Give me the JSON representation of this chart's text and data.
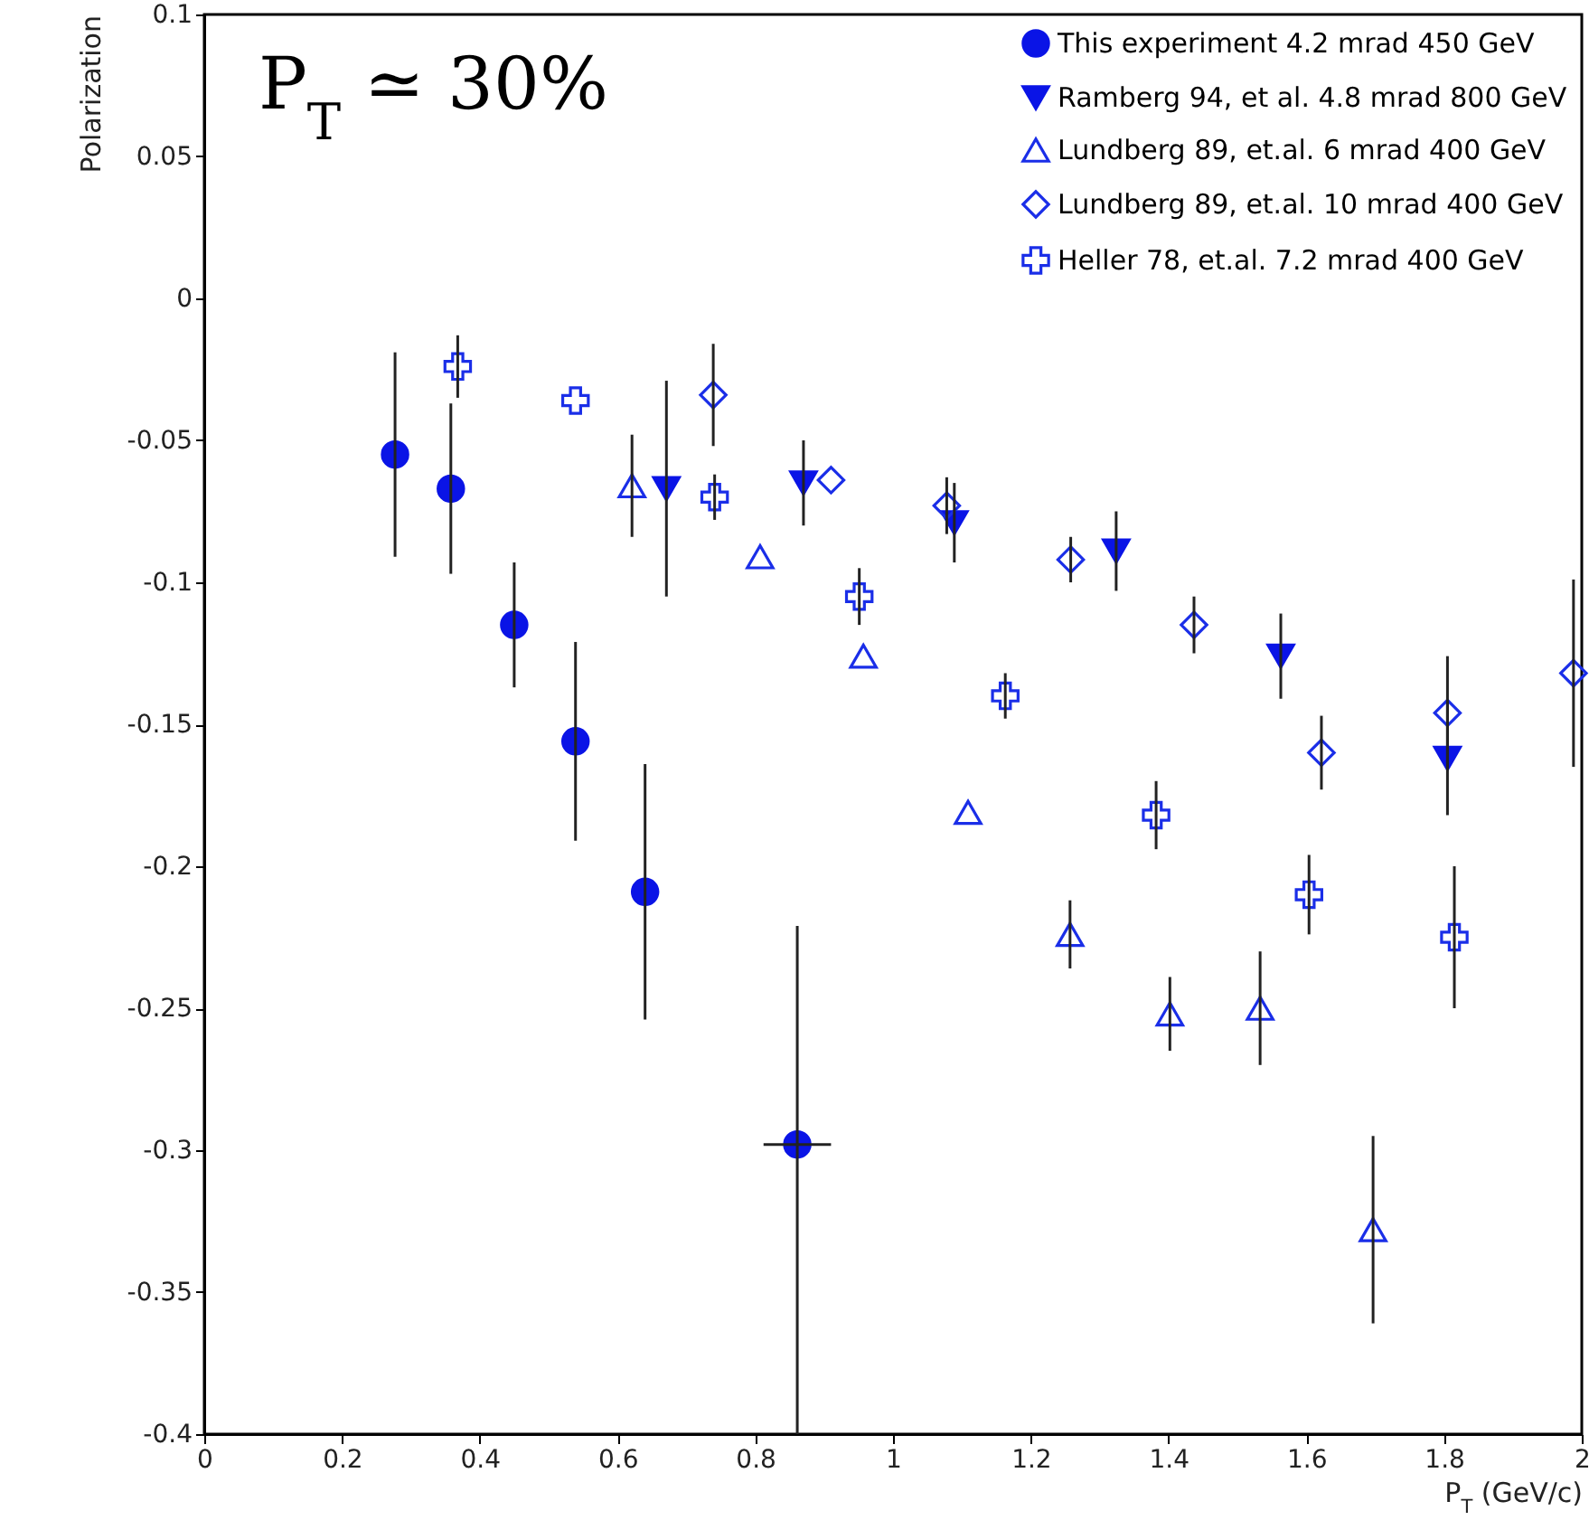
{
  "chart_data": {
    "type": "scatter",
    "xlabel": "P$_{T}$ (GeV/c)",
    "ylabel": "Polarization",
    "annotations": [
      "P$_{T}$ ≃ 30%"
    ],
    "xlim": [
      0,
      2
    ],
    "xticks": [
      0,
      0.2,
      0.4,
      0.6,
      0.8,
      1,
      1.2,
      1.4,
      1.6,
      1.8,
      2
    ],
    "ylim": [
      -0.4,
      0.1
    ],
    "yticks": [
      -0.4,
      -0.35,
      -0.3,
      -0.25,
      -0.2,
      -0.15,
      -0.1,
      -0.05,
      0,
      0.05,
      0.1
    ],
    "legend": "top right",
    "series": [
      {
        "name": "This experiment 4.2 mrad 450 GeV",
        "color": "#0a14e6",
        "marker": "circle",
        "x": [
          0.277,
          0.358,
          0.45,
          0.539,
          0.64,
          0.861
        ],
        "values": [
          -0.055,
          -0.067,
          -0.115,
          -0.156,
          -0.209,
          -0.298
        ],
        "errors": [
          0.036,
          0.03,
          0.022,
          0.035,
          0.045,
          [
            -0.4,
            -0.221
          ]
        ],
        "xerrors": [
          null,
          null,
          null,
          null,
          null,
          0.049
        ]
      },
      {
        "name": "Ramberg 94, et al. 4.8 mrad 800 GeV",
        "color": "#0a14e6",
        "marker": "triangle-down",
        "x": [
          0.671,
          0.87,
          1.089,
          1.324,
          1.563,
          1.805
        ],
        "values": [
          -0.067,
          -0.065,
          -0.079,
          -0.089,
          -0.126,
          -0.162
        ],
        "errors": [
          0.038,
          0.015,
          0.014,
          0.014,
          0.015,
          0.02
        ]
      },
      {
        "name": "Lundberg 89, et.al. 6 mrad 400 GeV",
        "color": "#1a2ee8",
        "marker": "triangle",
        "x": [
          0.621,
          0.807,
          0.957,
          1.109,
          1.257,
          1.402,
          1.533,
          1.697
        ],
        "values": [
          -0.066,
          -0.091,
          -0.126,
          -0.181,
          -0.224,
          -0.252,
          -0.25,
          -0.328
        ],
        "errors": [
          0.018,
          null,
          null,
          null,
          0.012,
          0.013,
          0.02,
          0.033
        ]
      },
      {
        "name": "Lundberg 89, et.al. 10 mrad 400 GeV",
        "color": "#1a2ee8",
        "marker": "diamond",
        "x": [
          0.739,
          0.91,
          1.078,
          1.258,
          1.437,
          1.622,
          1.805,
          1.988
        ],
        "values": [
          -0.034,
          -0.064,
          -0.073,
          -0.092,
          -0.115,
          -0.16,
          -0.146,
          -0.132
        ],
        "errors": [
          0.018,
          null,
          0.01,
          0.008,
          0.01,
          0.013,
          0.02,
          0.033
        ]
      },
      {
        "name": "Heller 78, et.al. 7.2 mrad 400 GeV",
        "color": "#1a2ee8",
        "marker": "cross",
        "x": [
          0.368,
          0.539,
          0.741,
          0.951,
          1.163,
          1.382,
          1.604,
          1.815
        ],
        "values": [
          -0.024,
          -0.036,
          -0.07,
          -0.105,
          -0.14,
          -0.182,
          -0.21,
          -0.225
        ],
        "errors": [
          0.011,
          null,
          0.008,
          0.01,
          0.008,
          0.012,
          0.014,
          0.025
        ]
      }
    ]
  }
}
